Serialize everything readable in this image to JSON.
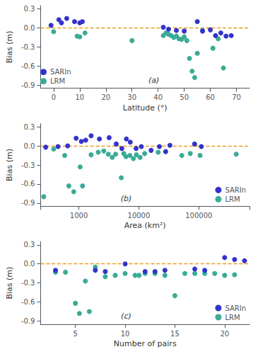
{
  "chart_data": [
    {
      "type": "scatter",
      "annotation": "(a)",
      "xlabel": "Latitude (°)",
      "ylabel": "Bias (m)",
      "xlim": [
        -5,
        75
      ],
      "xticks": [
        0,
        10,
        20,
        30,
        40,
        50,
        60,
        70
      ],
      "ylim": [
        -0.95,
        0.35
      ],
      "yticks": [
        0.3,
        {
          "value": 0.0,
          "label": "0.0"
        },
        -0.3,
        -0.6,
        -0.9
      ],
      "grid": false,
      "legend": "lower left",
      "marker": "circle",
      "reference_lines": [
        {
          "y": 0,
          "color": "#e8a020",
          "line_style": "dashed"
        }
      ],
      "series": [
        {
          "name": "SARIn",
          "color": "#3333cc",
          "x": [
            -1,
            2,
            3,
            5,
            8,
            10,
            11,
            42,
            44,
            47,
            50,
            55,
            57,
            60,
            62,
            64,
            66,
            68
          ],
          "values": [
            0.04,
            0.13,
            0.08,
            0.15,
            0.1,
            0.08,
            0.1,
            0.01,
            -0.02,
            -0.04,
            -0.05,
            0.1,
            -0.05,
            -0.03,
            -0.12,
            -0.08,
            -0.13,
            -0.12
          ]
        },
        {
          "name": "LRM",
          "color": "#3aab96",
          "x": [
            0,
            9,
            10,
            12,
            30,
            42,
            43,
            44,
            45,
            46,
            47,
            48,
            49,
            50,
            51,
            52,
            53,
            54,
            55,
            57,
            61,
            63,
            65
          ],
          "values": [
            -0.06,
            -0.13,
            -0.14,
            -0.08,
            -0.2,
            -0.12,
            -0.08,
            -0.1,
            -0.12,
            -0.15,
            -0.13,
            -0.17,
            -0.18,
            -0.14,
            -0.2,
            -0.48,
            -0.68,
            -0.78,
            -0.4,
            -0.04,
            -0.32,
            -0.17,
            -0.63
          ]
        }
      ]
    },
    {
      "type": "scatter",
      "annotation": "(b)",
      "xlabel": "Area (km²)",
      "ylabel": "Bias (m)",
      "log": "x",
      "xlim": [
        230,
        700000
      ],
      "xticks": [
        1000,
        10000,
        100000
      ],
      "ylim": [
        -0.95,
        0.35
      ],
      "yticks": [
        0.3,
        {
          "value": 0.0,
          "label": "0.0"
        },
        -0.3,
        -0.6,
        -0.9
      ],
      "grid": false,
      "legend": "lower right",
      "marker": "circle",
      "reference_lines": [
        {
          "y": 0,
          "color": "#e8a020",
          "line_style": "dashed"
        }
      ],
      "series": [
        {
          "name": "SARIn",
          "color": "#3333cc",
          "x": [
            280,
            450,
            650,
            900,
            1100,
            1300,
            1600,
            2200,
            3200,
            4200,
            5200,
            6200,
            7200,
            9000,
            11000,
            16000,
            22000,
            28000,
            33000,
            85000,
            110000
          ],
          "values": [
            -0.02,
            -0.01,
            0.0,
            0.12,
            0.07,
            0.09,
            0.16,
            0.11,
            0.13,
            0.03,
            -0.04,
            0.11,
            0.06,
            -0.04,
            -0.01,
            -0.07,
            -0.01,
            -0.09,
            0.01,
            0.03,
            -0.01
          ]
        },
        {
          "name": "LRM",
          "color": "#3aab96",
          "x": [
            260,
            380,
            580,
            680,
            820,
            1050,
            1150,
            1600,
            2100,
            2600,
            3100,
            3600,
            4100,
            5100,
            5600,
            6100,
            7100,
            8100,
            9100,
            10500,
            12500,
            21000,
            52000,
            72000,
            105000,
            420000
          ],
          "values": [
            -0.8,
            -0.05,
            -0.15,
            -0.63,
            -0.72,
            -0.33,
            -0.63,
            -0.14,
            -0.1,
            -0.08,
            -0.13,
            -0.18,
            -0.13,
            -0.5,
            -0.12,
            -0.17,
            -0.15,
            -0.2,
            -0.14,
            -0.18,
            -0.12,
            -0.1,
            -0.15,
            -0.12,
            -0.15,
            -0.13
          ]
        }
      ]
    },
    {
      "type": "scatter",
      "annotation": "(c)",
      "xlabel": "Number of pairs",
      "ylabel": "Bias (m)",
      "xlim": [
        1.5,
        22.5
      ],
      "xticks": [
        5,
        10,
        15,
        20
      ],
      "ylim": [
        -0.95,
        0.35
      ],
      "yticks": [
        0.3,
        {
          "value": 0.0,
          "label": "0.0"
        },
        -0.3,
        -0.6,
        -0.9
      ],
      "grid": false,
      "legend": "lower right",
      "marker": "circle",
      "reference_lines": [
        {
          "y": 0,
          "color": "#e8a020",
          "line_style": "dashed"
        }
      ],
      "series": [
        {
          "name": "SARIn",
          "color": "#3333cc",
          "x": [
            3,
            7,
            8,
            10,
            12,
            13,
            14,
            17,
            18,
            20,
            21,
            22
          ],
          "values": [
            -0.1,
            -0.1,
            -0.12,
            0.0,
            -0.12,
            -0.12,
            -0.1,
            -0.08,
            -0.1,
            0.1,
            0.07,
            0.05
          ]
        },
        {
          "name": "LRM",
          "color": "#3aab96",
          "x": [
            3,
            4,
            5,
            5.4,
            6,
            6.4,
            7,
            8,
            9,
            10,
            11,
            11.4,
            12,
            13,
            14,
            15,
            16,
            17,
            18,
            19,
            20,
            21
          ],
          "values": [
            -0.13,
            -0.13,
            -0.62,
            -0.78,
            -0.27,
            -0.75,
            -0.05,
            -0.2,
            -0.18,
            -0.15,
            -0.18,
            -0.18,
            -0.15,
            -0.15,
            -0.18,
            -0.5,
            -0.15,
            -0.15,
            -0.15,
            -0.15,
            -0.18,
            -0.17
          ]
        }
      ]
    }
  ]
}
